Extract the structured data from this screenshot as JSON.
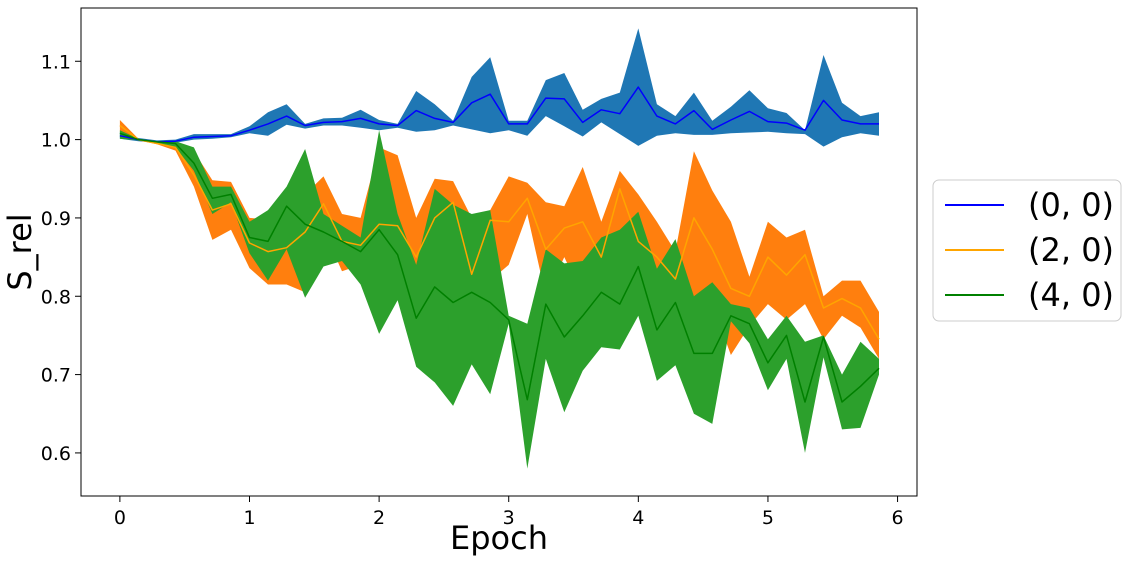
{
  "chart_data": {
    "type": "line",
    "xlabel": "Epoch",
    "ylabel": "S_rel",
    "xlim": [
      -0.3,
      6.15
    ],
    "ylim": [
      0.545,
      1.168
    ],
    "xticks": [
      0,
      1,
      2,
      3,
      4,
      5,
      6
    ],
    "xtick_labels": [
      "0",
      "1",
      "2",
      "3",
      "4",
      "5",
      "6"
    ],
    "yticks": [
      0.6,
      0.7,
      0.8,
      0.9,
      1.0,
      1.1
    ],
    "ytick_labels": [
      "0.6",
      "0.7",
      "0.8",
      "0.9",
      "1.0",
      "1.1"
    ],
    "grid": false,
    "legend": "right, outside plot",
    "x": [
      0,
      0.143,
      0.286,
      0.429,
      0.571,
      0.714,
      0.857,
      1.0,
      1.143,
      1.286,
      1.429,
      1.571,
      1.714,
      1.857,
      2.0,
      2.143,
      2.286,
      2.429,
      2.571,
      2.714,
      2.857,
      3.0,
      3.143,
      3.286,
      3.429,
      3.571,
      3.714,
      3.857,
      4.0,
      4.143,
      4.286,
      4.429,
      4.571,
      4.714,
      4.857,
      5.0,
      5.143,
      5.286,
      5.429,
      5.571,
      5.714,
      5.857
    ],
    "series": [
      {
        "name": "(0, 0)",
        "line_color": "#0000ff",
        "band_color": "#1f77b4",
        "values": [
          1.005,
          1.0,
          0.997,
          0.998,
          1.003,
          1.004,
          1.005,
          1.012,
          1.02,
          1.03,
          1.018,
          1.022,
          1.023,
          1.027,
          1.02,
          1.018,
          1.037,
          1.027,
          1.022,
          1.047,
          1.058,
          1.02,
          1.02,
          1.053,
          1.052,
          1.022,
          1.038,
          1.033,
          1.067,
          1.03,
          1.02,
          1.037,
          1.013,
          1.025,
          1.036,
          1.023,
          1.021,
          1.012,
          1.05,
          1.025,
          1.02,
          1.02
        ],
        "upper": [
          1.01,
          1.002,
          0.999,
          1.0,
          1.007,
          1.007,
          1.007,
          1.017,
          1.035,
          1.045,
          1.02,
          1.027,
          1.028,
          1.038,
          1.025,
          1.02,
          1.062,
          1.045,
          1.024,
          1.08,
          1.105,
          1.024,
          1.024,
          1.076,
          1.085,
          1.038,
          1.052,
          1.06,
          1.142,
          1.045,
          1.03,
          1.06,
          1.024,
          1.042,
          1.063,
          1.04,
          1.034,
          1.012,
          1.108,
          1.047,
          1.03,
          1.035
        ],
        "lower": [
          1.001,
          0.998,
          0.996,
          0.996,
          1.0,
          1.001,
          1.003,
          1.008,
          1.005,
          1.019,
          1.014,
          1.018,
          1.018,
          1.015,
          1.012,
          1.015,
          1.01,
          1.012,
          1.018,
          1.013,
          1.008,
          1.012,
          1.005,
          1.03,
          1.017,
          1.004,
          1.022,
          1.007,
          0.992,
          1.005,
          1.008,
          1.006,
          1.006,
          1.008,
          1.009,
          1.01,
          1.008,
          1.007,
          0.991,
          1.003,
          1.008,
          1.005
        ]
      },
      {
        "name": "(2, 0)",
        "line_color": "#ffa500",
        "band_color": "#ff7f0e",
        "values": [
          1.018,
          1.0,
          0.995,
          0.99,
          0.955,
          0.91,
          0.918,
          0.868,
          0.857,
          0.862,
          0.882,
          0.918,
          0.87,
          0.865,
          0.892,
          0.89,
          0.85,
          0.9,
          0.92,
          0.828,
          0.897,
          0.895,
          0.925,
          0.86,
          0.887,
          0.895,
          0.85,
          0.937,
          0.87,
          0.85,
          0.822,
          0.9,
          0.86,
          0.81,
          0.8,
          0.85,
          0.827,
          0.853,
          0.785,
          0.797,
          0.785,
          0.745
        ],
        "upper": [
          1.025,
          1.001,
          0.996,
          0.993,
          0.985,
          0.948,
          0.946,
          0.9,
          0.898,
          0.89,
          0.93,
          0.953,
          0.905,
          0.9,
          0.99,
          0.98,
          0.9,
          0.95,
          0.947,
          0.9,
          0.91,
          0.953,
          0.945,
          0.92,
          0.915,
          0.965,
          0.895,
          0.96,
          0.93,
          0.895,
          0.857,
          0.985,
          0.935,
          0.895,
          0.825,
          0.895,
          0.875,
          0.885,
          0.8,
          0.82,
          0.82,
          0.78
        ],
        "lower": [
          1.01,
          0.999,
          0.994,
          0.986,
          0.94,
          0.872,
          0.885,
          0.836,
          0.815,
          0.815,
          0.805,
          0.885,
          0.832,
          0.84,
          0.82,
          0.8,
          0.825,
          0.86,
          0.9,
          0.8,
          0.82,
          0.84,
          0.905,
          0.8,
          0.85,
          0.8,
          0.79,
          0.87,
          0.85,
          0.785,
          0.795,
          0.8,
          0.79,
          0.725,
          0.762,
          0.79,
          0.77,
          0.79,
          0.745,
          0.775,
          0.76,
          0.72
        ]
      },
      {
        "name": "(4, 0)",
        "line_color": "#008000",
        "band_color": "#2ca02c",
        "values": [
          1.008,
          1.0,
          0.997,
          0.995,
          0.97,
          0.925,
          0.93,
          0.875,
          0.87,
          0.915,
          0.892,
          0.882,
          0.87,
          0.857,
          0.885,
          0.853,
          0.772,
          0.812,
          0.792,
          0.805,
          0.792,
          0.77,
          0.668,
          0.79,
          0.748,
          0.775,
          0.805,
          0.79,
          0.838,
          0.757,
          0.792,
          0.727,
          0.727,
          0.775,
          0.765,
          0.715,
          0.75,
          0.665,
          0.748,
          0.665,
          0.685,
          0.708
        ],
        "upper": [
          1.012,
          1.001,
          0.998,
          0.998,
          0.99,
          0.94,
          0.94,
          0.895,
          0.91,
          0.94,
          0.988,
          0.905,
          0.89,
          0.875,
          1.012,
          0.905,
          0.84,
          0.937,
          0.917,
          0.905,
          0.91,
          0.775,
          0.765,
          0.86,
          0.842,
          0.845,
          0.875,
          0.885,
          0.908,
          0.835,
          0.873,
          0.8,
          0.818,
          0.79,
          0.785,
          0.745,
          0.775,
          0.742,
          0.75,
          0.7,
          0.742,
          0.72
        ],
        "lower": [
          1.001,
          0.999,
          0.996,
          0.99,
          0.96,
          0.905,
          0.92,
          0.855,
          0.82,
          0.86,
          0.798,
          0.838,
          0.845,
          0.815,
          0.752,
          0.795,
          0.71,
          0.69,
          0.66,
          0.713,
          0.675,
          0.765,
          0.58,
          0.72,
          0.652,
          0.705,
          0.735,
          0.732,
          0.775,
          0.692,
          0.712,
          0.65,
          0.637,
          0.768,
          0.74,
          0.68,
          0.72,
          0.6,
          0.722,
          0.63,
          0.632,
          0.7
        ]
      }
    ]
  }
}
